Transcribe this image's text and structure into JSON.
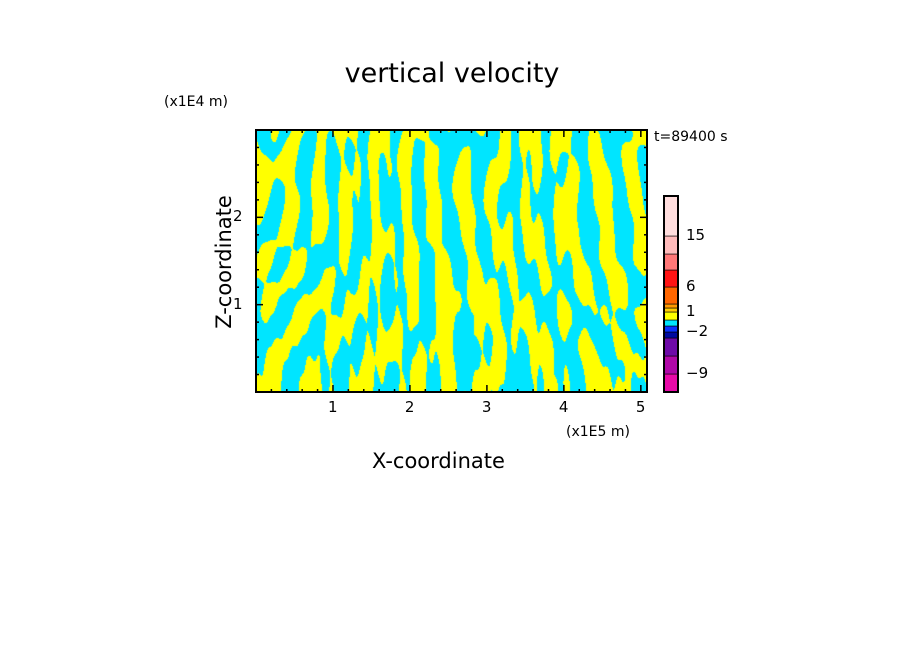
{
  "chart_data": {
    "type": "heatmap",
    "subtype": "filled-contour",
    "title": "vertical velocity",
    "xlabel": "X-coordinate",
    "ylabel": "Z-coordinate",
    "x_unit": "(x1E5 m)",
    "y_unit": "(x1E4 m)",
    "xlim": [
      0,
      5.08
    ],
    "ylim": [
      0,
      3.0
    ],
    "xticks": [
      "1",
      "2",
      "3",
      "4",
      "5"
    ],
    "xtick_values": [
      1,
      2,
      3,
      4,
      5
    ],
    "yticks": [
      "1",
      "2"
    ],
    "ytick_values": [
      1,
      2
    ],
    "time_label": "t=89400 s",
    "dominant_colors": {
      "positive_small": "#ffff00",
      "negative_small": "#00e5ff"
    },
    "colorbar": {
      "labels": [
        "15",
        "6",
        "1",
        "−2",
        "−9"
      ],
      "label_values": [
        15,
        6,
        1,
        -2,
        -9
      ],
      "levels_bottom_to_top": [
        {
          "color": "#e80aa8",
          "from": -12,
          "to": -9
        },
        {
          "color": "#b008a8",
          "from": -9,
          "to": -6
        },
        {
          "color": "#6e0aa8",
          "from": -6,
          "to": -3
        },
        {
          "color": "#000aa0",
          "from": -3,
          "to": -2
        },
        {
          "color": "#0a32ff",
          "from": -2,
          "to": -1
        },
        {
          "color": "#00e5ff",
          "from": -1,
          "to": 0
        },
        {
          "color": "#ffff00",
          "from": 0,
          "to": 1
        },
        {
          "color": "#ffcc00",
          "from": 1,
          "to": 2
        },
        {
          "color": "#ff9900",
          "from": 2,
          "to": 3
        },
        {
          "color": "#ff6600",
          "from": 3,
          "to": 6
        },
        {
          "color": "#ff1414",
          "from": 6,
          "to": 9
        },
        {
          "color": "#ff7777",
          "from": 9,
          "to": 12
        },
        {
          "color": "#ffbbbb",
          "from": 12,
          "to": 15
        },
        {
          "color": "#ffdddd",
          "from": 15,
          "to": 21
        }
      ]
    }
  }
}
